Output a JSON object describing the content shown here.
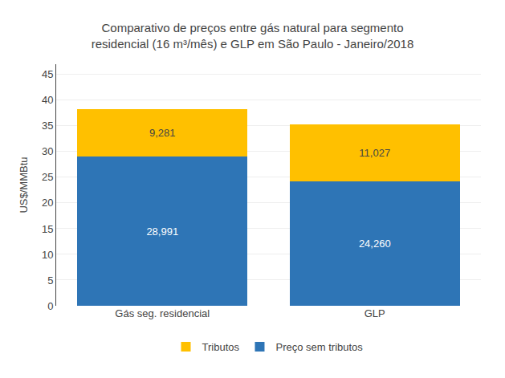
{
  "chart_data": {
    "type": "bar",
    "title": "Comparativo de preços entre gás natural para segmento\nresidencial (16 m³/mês) e GLP em São Paulo - Janeiro/2018",
    "categories": [
      "Gás seg. residencial",
      "GLP"
    ],
    "series": [
      {
        "name": "Preço sem tributos",
        "color": "#2E75B6",
        "values": [
          28.991,
          24.26
        ],
        "value_labels": [
          "28,991",
          "24,260"
        ]
      },
      {
        "name": "Tributos",
        "color": "#FFC000",
        "values": [
          9.281,
          11.027
        ],
        "value_labels": [
          "9,281",
          "11,027"
        ]
      }
    ],
    "stacked": true,
    "data_labels": true,
    "ylabel": "US$/MMBtu",
    "ylim": [
      0,
      47
    ],
    "yticks": [
      0,
      5,
      10,
      15,
      20,
      25,
      30,
      35,
      40,
      45
    ],
    "grid": true,
    "legend": "bottom"
  }
}
